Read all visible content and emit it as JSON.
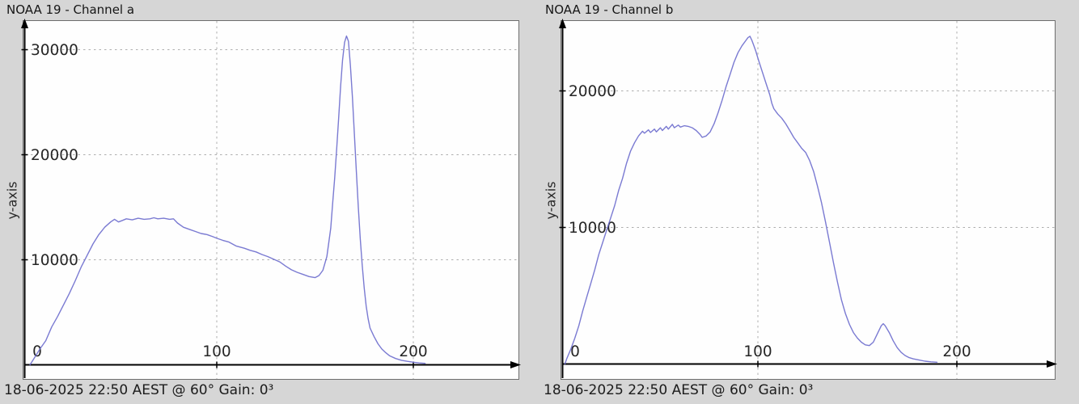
{
  "window": {
    "background_color": "#d6d6d6"
  },
  "colors": {
    "plot_background": "#fefefe",
    "curve": "#6b6bcd",
    "grid": "#aeaeae",
    "axis": "#000000",
    "text": "#1c1c1c"
  },
  "status": {
    "left": "18-06-2025 22:50 AEST @ 60° Gain: 0³",
    "right": "18-06-2025 22:50 AEST @ 60° Gain: 0³"
  },
  "chart_data": [
    {
      "type": "line",
      "title": "NOAA 19 - Channel a",
      "xlabel": "",
      "ylabel": "y-axis",
      "footer": "18-06-2025 22:50 AEST @ 60° Gain: 0³",
      "x_ticks": [
        0,
        100,
        200
      ],
      "y_ticks": [
        10000,
        20000,
        30000
      ],
      "xlim": [
        0,
        255
      ],
      "ylim": [
        0,
        32500
      ],
      "grid": true,
      "legend": "none",
      "line_color": "#6b6bcd",
      "points": [
        [
          5,
          0
        ],
        [
          7,
          600
        ],
        [
          10,
          1500
        ],
        [
          13,
          2300
        ],
        [
          16,
          3600
        ],
        [
          19,
          4600
        ],
        [
          22,
          5700
        ],
        [
          25,
          6800
        ],
        [
          28,
          8000
        ],
        [
          31,
          9300
        ],
        [
          34,
          10400
        ],
        [
          37,
          11500
        ],
        [
          40,
          12400
        ],
        [
          43,
          13100
        ],
        [
          46,
          13600
        ],
        [
          48,
          13850
        ],
        [
          50,
          13600
        ],
        [
          52,
          13750
        ],
        [
          54,
          13900
        ],
        [
          57,
          13800
        ],
        [
          60,
          13950
        ],
        [
          63,
          13850
        ],
        [
          66,
          13900
        ],
        [
          68,
          14000
        ],
        [
          70,
          13900
        ],
        [
          73,
          13950
        ],
        [
          76,
          13850
        ],
        [
          78,
          13900
        ],
        [
          80,
          13500
        ],
        [
          83,
          13100
        ],
        [
          86,
          12900
        ],
        [
          89,
          12700
        ],
        [
          92,
          12500
        ],
        [
          95,
          12400
        ],
        [
          98,
          12200
        ],
        [
          100,
          12050
        ],
        [
          103,
          11850
        ],
        [
          106,
          11700
        ],
        [
          110,
          11300
        ],
        [
          114,
          11100
        ],
        [
          117,
          10900
        ],
        [
          120,
          10750
        ],
        [
          123,
          10500
        ],
        [
          126,
          10300
        ],
        [
          129,
          10050
        ],
        [
          132,
          9800
        ],
        [
          135,
          9400
        ],
        [
          138,
          9050
        ],
        [
          141,
          8800
        ],
        [
          144,
          8600
        ],
        [
          147,
          8400
        ],
        [
          150,
          8300
        ],
        [
          152,
          8500
        ],
        [
          154,
          9000
        ],
        [
          156,
          10300
        ],
        [
          158,
          13000
        ],
        [
          159,
          15500
        ],
        [
          160,
          17800
        ],
        [
          161,
          20500
        ],
        [
          162,
          23500
        ],
        [
          163,
          26500
        ],
        [
          164,
          29000
        ],
        [
          165,
          30700
        ],
        [
          166,
          31300
        ],
        [
          167,
          30800
        ],
        [
          168,
          28500
        ],
        [
          169,
          25500
        ],
        [
          170,
          22000
        ],
        [
          171,
          18500
        ],
        [
          172,
          15000
        ],
        [
          173,
          12000
        ],
        [
          174,
          9500
        ],
        [
          175,
          7300
        ],
        [
          176,
          5600
        ],
        [
          177,
          4400
        ],
        [
          178,
          3500
        ],
        [
          180,
          2700
        ],
        [
          182,
          2000
        ],
        [
          184,
          1500
        ],
        [
          186,
          1150
        ],
        [
          188,
          850
        ],
        [
          191,
          600
        ],
        [
          194,
          430
        ],
        [
          197,
          330
        ],
        [
          200,
          250
        ],
        [
          203,
          180
        ],
        [
          206,
          140
        ]
      ]
    },
    {
      "type": "line",
      "title": "NOAA 19 - Channel b",
      "xlabel": "",
      "ylabel": "y-axis",
      "footer": "18-06-2025 22:50 AEST @ 60° Gain: 0³",
      "x_ticks": [
        0,
        100,
        200
      ],
      "y_ticks": [
        10000,
        20000
      ],
      "xlim": [
        0,
        255
      ],
      "ylim": [
        0,
        25200
      ],
      "grid": true,
      "legend": "none",
      "line_color": "#6b6bcd",
      "points": [
        [
          3,
          0
        ],
        [
          4,
          400
        ],
        [
          6,
          1100
        ],
        [
          8,
          1900
        ],
        [
          10,
          2800
        ],
        [
          12,
          3900
        ],
        [
          14,
          4900
        ],
        [
          16,
          5900
        ],
        [
          18,
          6900
        ],
        [
          20,
          8000
        ],
        [
          22,
          8900
        ],
        [
          24,
          9800
        ],
        [
          26,
          10700
        ],
        [
          28,
          11600
        ],
        [
          30,
          12700
        ],
        [
          32,
          13600
        ],
        [
          34,
          14700
        ],
        [
          36,
          15600
        ],
        [
          38,
          16200
        ],
        [
          40,
          16700
        ],
        [
          42,
          17050
        ],
        [
          43,
          16900
        ],
        [
          45,
          17150
        ],
        [
          46,
          16950
        ],
        [
          48,
          17200
        ],
        [
          49,
          17000
        ],
        [
          51,
          17300
        ],
        [
          52,
          17100
        ],
        [
          54,
          17400
        ],
        [
          55,
          17200
        ],
        [
          57,
          17550
        ],
        [
          58,
          17300
        ],
        [
          60,
          17500
        ],
        [
          61,
          17350
        ],
        [
          63,
          17450
        ],
        [
          65,
          17400
        ],
        [
          67,
          17300
        ],
        [
          69,
          17100
        ],
        [
          71,
          16800
        ],
        [
          72,
          16600
        ],
        [
          74,
          16700
        ],
        [
          76,
          17000
        ],
        [
          78,
          17600
        ],
        [
          80,
          18400
        ],
        [
          82,
          19300
        ],
        [
          84,
          20300
        ],
        [
          86,
          21200
        ],
        [
          88,
          22100
        ],
        [
          90,
          22800
        ],
        [
          92,
          23300
        ],
        [
          94,
          23700
        ],
        [
          95,
          23900
        ],
        [
          96,
          24000
        ],
        [
          97,
          23700
        ],
        [
          98,
          23300
        ],
        [
          99,
          22900
        ],
        [
          100,
          22400
        ],
        [
          102,
          21500
        ],
        [
          104,
          20600
        ],
        [
          106,
          19700
        ],
        [
          107,
          19100
        ],
        [
          108,
          18700
        ],
        [
          110,
          18300
        ],
        [
          112,
          18000
        ],
        [
          114,
          17600
        ],
        [
          116,
          17100
        ],
        [
          118,
          16600
        ],
        [
          120,
          16200
        ],
        [
          122,
          15800
        ],
        [
          124,
          15500
        ],
        [
          126,
          14900
        ],
        [
          128,
          14100
        ],
        [
          130,
          13000
        ],
        [
          132,
          11800
        ],
        [
          134,
          10400
        ],
        [
          136,
          8900
        ],
        [
          138,
          7400
        ],
        [
          140,
          6000
        ],
        [
          142,
          4700
        ],
        [
          144,
          3700
        ],
        [
          146,
          2900
        ],
        [
          148,
          2300
        ],
        [
          150,
          1900
        ],
        [
          152,
          1600
        ],
        [
          154,
          1400
        ],
        [
          156,
          1350
        ],
        [
          158,
          1600
        ],
        [
          160,
          2200
        ],
        [
          162,
          2800
        ],
        [
          163,
          2950
        ],
        [
          164,
          2800
        ],
        [
          166,
          2300
        ],
        [
          168,
          1700
        ],
        [
          170,
          1200
        ],
        [
          172,
          850
        ],
        [
          174,
          620
        ],
        [
          176,
          470
        ],
        [
          178,
          380
        ],
        [
          181,
          290
        ],
        [
          184,
          210
        ],
        [
          187,
          160
        ],
        [
          190,
          130
        ]
      ]
    }
  ]
}
